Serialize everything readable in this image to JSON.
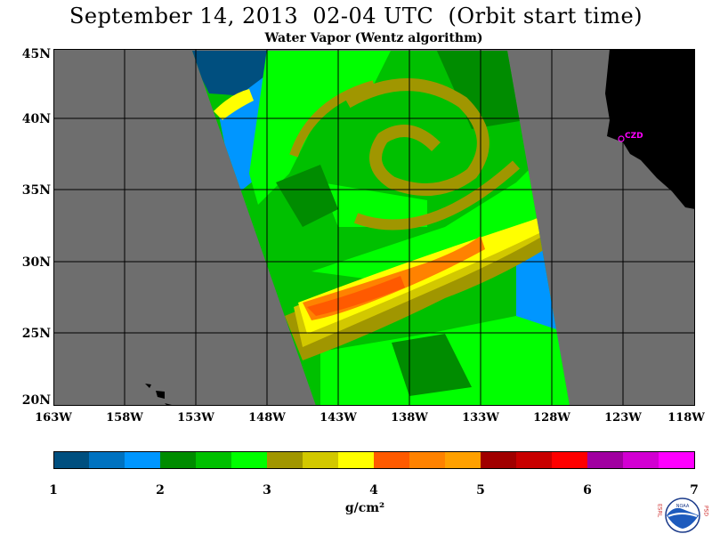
{
  "title": "September 14, 2013  02-04 UTC  (Orbit start time)",
  "subtitle": "Water Vapor (Wentz algorithm)",
  "latitude_labels": [
    "45N",
    "40N",
    "35N",
    "30N",
    "25N",
    "20N"
  ],
  "longitude_labels": [
    "163W",
    "158W",
    "153W",
    "148W",
    "143W",
    "138W",
    "133W",
    "128W",
    "123W",
    "118W"
  ],
  "station_label": "CZD",
  "colorbar": {
    "ticks": [
      "1",
      "2",
      "3",
      "4",
      "5",
      "6",
      "7"
    ],
    "units": "g/cm²",
    "colors": [
      "#004f7f",
      "#0072c0",
      "#0096ff",
      "#008c00",
      "#00c000",
      "#00ff00",
      "#a09600",
      "#d2c800",
      "#ffff00",
      "#ff5a00",
      "#ff8200",
      "#ffa000",
      "#a00000",
      "#c80000",
      "#ff0000",
      "#a000a0",
      "#d200d2",
      "#ff00ff"
    ]
  },
  "colors": {
    "land": "#000000",
    "no_data": "#6e6e6e",
    "grid": "#000000",
    "station": "#ff00ff"
  },
  "logo": {
    "left_letters": "ESRL",
    "right_letters": "PSD",
    "center_text": "NOAA"
  }
}
